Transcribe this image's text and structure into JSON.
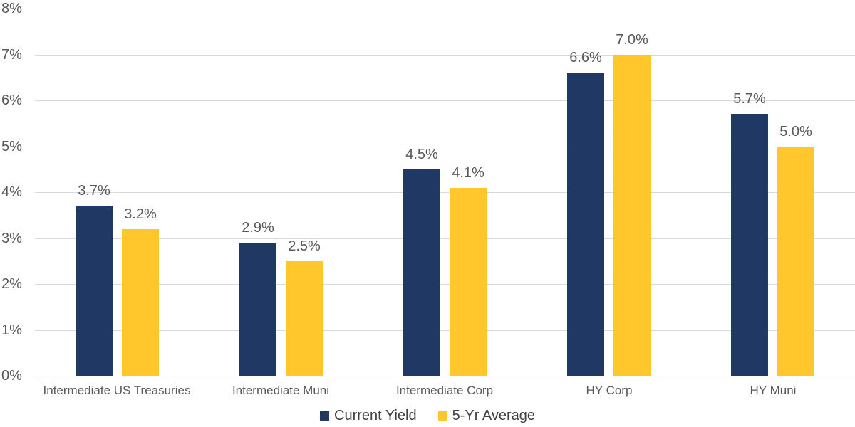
{
  "chart_data": {
    "type": "bar",
    "title": "",
    "categories": [
      "Intermediate US Treasuries",
      "Intermediate Muni",
      "Intermediate Corp",
      "HY Corp",
      "HY Muni"
    ],
    "series": [
      {
        "name": "Current Yield",
        "color": "#1F3864",
        "values": [
          3.7,
          2.9,
          4.5,
          6.6,
          5.7
        ],
        "data_labels": [
          "3.7%",
          "2.9%",
          "4.5%",
          "6.6%",
          "5.7%"
        ]
      },
      {
        "name": "5-Yr Average",
        "color": "#FFC72C",
        "values": [
          3.2,
          2.5,
          4.1,
          7.0,
          5.0
        ],
        "data_labels": [
          "3.2%",
          "2.5%",
          "4.1%",
          "7.0%",
          "5.0%"
        ]
      }
    ],
    "ylim": [
      0,
      8
    ],
    "yticks": [
      {
        "value": 0,
        "label": "0%"
      },
      {
        "value": 1,
        "label": "1%"
      },
      {
        "value": 2,
        "label": "2%"
      },
      {
        "value": 3,
        "label": "3%"
      },
      {
        "value": 4,
        "label": "4%"
      },
      {
        "value": 5,
        "label": "5%"
      },
      {
        "value": 6,
        "label": "6%"
      },
      {
        "value": 7,
        "label": "7%"
      },
      {
        "value": 8,
        "label": "8%"
      }
    ],
    "grid": true,
    "legend_position": "bottom",
    "colors": {
      "grid": "#D9D9D9",
      "axis_text": "#595959",
      "legend_text": "#404040",
      "background": "#FFFFFF"
    }
  }
}
